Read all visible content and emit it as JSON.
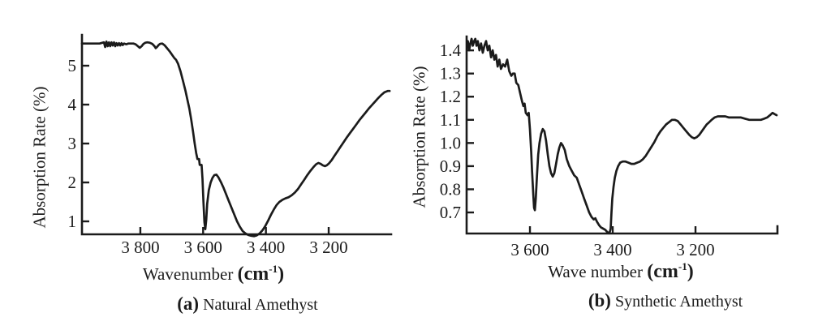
{
  "figure": {
    "background": "#ffffff",
    "ink": "#1b1b1b"
  },
  "chart_data": [
    {
      "id": "a",
      "type": "line",
      "caption_prefix": "(a)",
      "caption_text": "Natural Amethyst",
      "ylabel": "Absorption Rate (%)",
      "xlabel": "Wavenumber",
      "unit_pre": "(cm",
      "unit_exp": "-1",
      "unit_post": ")",
      "x_axis_reversed": true,
      "grid": false,
      "legend": "none",
      "x_ticks": [
        {
          "value": 3800,
          "label": "3 800"
        },
        {
          "value": 3600,
          "label": "3 600"
        },
        {
          "value": 3400,
          "label": "3 400"
        },
        {
          "value": 3200,
          "label": "3 200"
        }
      ],
      "y_ticks": [
        {
          "value": 1,
          "label": "1"
        },
        {
          "value": 2,
          "label": "2"
        },
        {
          "value": 3,
          "label": "3"
        },
        {
          "value": 4,
          "label": "4"
        },
        {
          "value": 5,
          "label": "5"
        }
      ],
      "x_range": [
        3986,
        3001
      ],
      "y_range": [
        0.667,
        5.792
      ],
      "series": [
        [
          3986,
          5.57
        ],
        [
          3970,
          5.57
        ],
        [
          3950,
          5.57
        ],
        [
          3930,
          5.57
        ],
        [
          3916,
          5.6
        ],
        [
          3912,
          5.48
        ],
        [
          3908,
          5.62
        ],
        [
          3904,
          5.5
        ],
        [
          3900,
          5.6
        ],
        [
          3896,
          5.5
        ],
        [
          3892,
          5.6
        ],
        [
          3888,
          5.52
        ],
        [
          3884,
          5.6
        ],
        [
          3880,
          5.5
        ],
        [
          3876,
          5.58
        ],
        [
          3872,
          5.52
        ],
        [
          3868,
          5.58
        ],
        [
          3864,
          5.52
        ],
        [
          3860,
          5.58
        ],
        [
          3856,
          5.53
        ],
        [
          3852,
          5.57
        ],
        [
          3845,
          5.55
        ],
        [
          3838,
          5.57
        ],
        [
          3830,
          5.57
        ],
        [
          3822,
          5.57
        ],
        [
          3815,
          5.55
        ],
        [
          3808,
          5.5
        ],
        [
          3802,
          5.46
        ],
        [
          3796,
          5.5
        ],
        [
          3790,
          5.56
        ],
        [
          3784,
          5.59
        ],
        [
          3778,
          5.6
        ],
        [
          3770,
          5.59
        ],
        [
          3762,
          5.56
        ],
        [
          3755,
          5.5
        ],
        [
          3751,
          5.45
        ],
        [
          3747,
          5.48
        ],
        [
          3742,
          5.53
        ],
        [
          3737,
          5.56
        ],
        [
          3730,
          5.57
        ],
        [
          3722,
          5.52
        ],
        [
          3714,
          5.44
        ],
        [
          3706,
          5.36
        ],
        [
          3698,
          5.27
        ],
        [
          3692,
          5.2
        ],
        [
          3686,
          5.15
        ],
        [
          3680,
          5.05
        ],
        [
          3672,
          4.85
        ],
        [
          3664,
          4.6
        ],
        [
          3656,
          4.35
        ],
        [
          3650,
          4.12
        ],
        [
          3644,
          3.9
        ],
        [
          3638,
          3.62
        ],
        [
          3632,
          3.3
        ],
        [
          3627,
          3.0
        ],
        [
          3622,
          2.75
        ],
        [
          3618,
          2.6
        ],
        [
          3613,
          2.6
        ],
        [
          3611,
          2.45
        ],
        [
          3605,
          2.45
        ],
        [
          3602,
          2.1
        ],
        [
          3599,
          1.5
        ],
        [
          3596,
          0.98
        ],
        [
          3593,
          0.8
        ],
        [
          3590,
          1.05
        ],
        [
          3587,
          1.45
        ],
        [
          3582,
          1.8
        ],
        [
          3576,
          2.0
        ],
        [
          3570,
          2.12
        ],
        [
          3564,
          2.19
        ],
        [
          3558,
          2.2
        ],
        [
          3552,
          2.14
        ],
        [
          3544,
          2.02
        ],
        [
          3536,
          1.88
        ],
        [
          3528,
          1.72
        ],
        [
          3519,
          1.54
        ],
        [
          3510,
          1.36
        ],
        [
          3501,
          1.18
        ],
        [
          3492,
          1.0
        ],
        [
          3483,
          0.86
        ],
        [
          3474,
          0.75
        ],
        [
          3465,
          0.69
        ],
        [
          3456,
          0.65
        ],
        [
          3447,
          0.63
        ],
        [
          3438,
          0.62
        ],
        [
          3429,
          0.64
        ],
        [
          3420,
          0.69
        ],
        [
          3411,
          0.77
        ],
        [
          3402,
          0.88
        ],
        [
          3393,
          1.02
        ],
        [
          3384,
          1.17
        ],
        [
          3375,
          1.3
        ],
        [
          3366,
          1.42
        ],
        [
          3357,
          1.5
        ],
        [
          3348,
          1.55
        ],
        [
          3338,
          1.59
        ],
        [
          3328,
          1.62
        ],
        [
          3318,
          1.67
        ],
        [
          3308,
          1.74
        ],
        [
          3298,
          1.83
        ],
        [
          3288,
          1.95
        ],
        [
          3278,
          2.07
        ],
        [
          3268,
          2.19
        ],
        [
          3258,
          2.3
        ],
        [
          3248,
          2.4
        ],
        [
          3240,
          2.47
        ],
        [
          3233,
          2.5
        ],
        [
          3226,
          2.48
        ],
        [
          3219,
          2.44
        ],
        [
          3212,
          2.42
        ],
        [
          3206,
          2.44
        ],
        [
          3199,
          2.49
        ],
        [
          3191,
          2.57
        ],
        [
          3182,
          2.68
        ],
        [
          3172,
          2.8
        ],
        [
          3162,
          2.92
        ],
        [
          3152,
          3.04
        ],
        [
          3142,
          3.16
        ],
        [
          3132,
          3.27
        ],
        [
          3122,
          3.38
        ],
        [
          3112,
          3.49
        ],
        [
          3102,
          3.6
        ],
        [
          3092,
          3.7
        ],
        [
          3082,
          3.8
        ],
        [
          3072,
          3.9
        ],
        [
          3062,
          3.99
        ],
        [
          3052,
          4.08
        ],
        [
          3042,
          4.17
        ],
        [
          3032,
          4.25
        ],
        [
          3022,
          4.32
        ],
        [
          3012,
          4.35
        ],
        [
          3006,
          4.35
        ]
      ]
    },
    {
      "id": "b",
      "type": "line",
      "caption_prefix": "(b)",
      "caption_text": "Synthetic Amethyst",
      "ylabel": "Absorption Rate (%)",
      "xlabel": "Wave number",
      "unit_pre": "(cm",
      "unit_exp": "-1",
      "unit_post": ")",
      "x_axis_reversed": true,
      "grid": false,
      "legend": "none",
      "x_ticks": [
        {
          "value": 3600,
          "label": "3 600"
        },
        {
          "value": 3400,
          "label": "3 400"
        },
        {
          "value": 3200,
          "label": "3 200"
        }
      ],
      "y_ticks": [
        {
          "value": 0.7,
          "label": "0.7"
        },
        {
          "value": 0.8,
          "label": "0.8"
        },
        {
          "value": 0.9,
          "label": "0.9"
        },
        {
          "value": 1.0,
          "label": "1.0"
        },
        {
          "value": 1.1,
          "label": "1.1"
        },
        {
          "value": 1.2,
          "label": "1.2"
        },
        {
          "value": 1.3,
          "label": "1.3"
        },
        {
          "value": 1.4,
          "label": "1.4"
        }
      ],
      "x_range": [
        3753,
        3002
      ],
      "y_range": [
        0.609,
        1.46
      ],
      "series": [
        [
          3752,
          1.41
        ],
        [
          3750,
          1.44
        ],
        [
          3747,
          1.4
        ],
        [
          3744,
          1.43
        ],
        [
          3741,
          1.45
        ],
        [
          3738,
          1.42
        ],
        [
          3735,
          1.44
        ],
        [
          3732,
          1.45
        ],
        [
          3729,
          1.42
        ],
        [
          3726,
          1.44
        ],
        [
          3722,
          1.4
        ],
        [
          3718,
          1.43
        ],
        [
          3714,
          1.39
        ],
        [
          3710,
          1.42
        ],
        [
          3706,
          1.44
        ],
        [
          3702,
          1.4
        ],
        [
          3698,
          1.42
        ],
        [
          3694,
          1.37
        ],
        [
          3690,
          1.4
        ],
        [
          3686,
          1.36
        ],
        [
          3682,
          1.38
        ],
        [
          3678,
          1.33
        ],
        [
          3674,
          1.36
        ],
        [
          3670,
          1.32
        ],
        [
          3665,
          1.34
        ],
        [
          3660,
          1.33
        ],
        [
          3655,
          1.36
        ],
        [
          3650,
          1.31
        ],
        [
          3645,
          1.29
        ],
        [
          3641,
          1.3
        ],
        [
          3637,
          1.3
        ],
        [
          3633,
          1.26
        ],
        [
          3628,
          1.25
        ],
        [
          3623,
          1.21
        ],
        [
          3619,
          1.18
        ],
        [
          3616,
          1.16
        ],
        [
          3613,
          1.17
        ],
        [
          3610,
          1.13
        ],
        [
          3606,
          1.12
        ],
        [
          3603,
          1.13
        ],
        [
          3600,
          1.06
        ],
        [
          3597,
          0.96
        ],
        [
          3595,
          0.88
        ],
        [
          3592,
          0.78
        ],
        [
          3590,
          0.72
        ],
        [
          3588,
          0.71
        ],
        [
          3586,
          0.76
        ],
        [
          3583,
          0.86
        ],
        [
          3580,
          0.95
        ],
        [
          3577,
          1.0
        ],
        [
          3573,
          1.04
        ],
        [
          3569,
          1.06
        ],
        [
          3565,
          1.05
        ],
        [
          3561,
          1.01
        ],
        [
          3557,
          0.95
        ],
        [
          3553,
          0.9
        ],
        [
          3549,
          0.87
        ],
        [
          3545,
          0.855
        ],
        [
          3541,
          0.87
        ],
        [
          3537,
          0.91
        ],
        [
          3533,
          0.95
        ],
        [
          3529,
          0.98
        ],
        [
          3525,
          1.0
        ],
        [
          3521,
          0.99
        ],
        [
          3516,
          0.97
        ],
        [
          3511,
          0.93
        ],
        [
          3505,
          0.9
        ],
        [
          3499,
          0.88
        ],
        [
          3493,
          0.86
        ],
        [
          3487,
          0.85
        ],
        [
          3481,
          0.82
        ],
        [
          3475,
          0.79
        ],
        [
          3469,
          0.76
        ],
        [
          3463,
          0.73
        ],
        [
          3457,
          0.7
        ],
        [
          3451,
          0.68
        ],
        [
          3446,
          0.67
        ],
        [
          3442,
          0.675
        ],
        [
          3438,
          0.66
        ],
        [
          3433,
          0.645
        ],
        [
          3428,
          0.635
        ],
        [
          3423,
          0.63
        ],
        [
          3418,
          0.625
        ],
        [
          3413,
          0.615
        ],
        [
          3408,
          0.61
        ],
        [
          3405,
          0.63
        ],
        [
          3403,
          0.7
        ],
        [
          3401,
          0.76
        ],
        [
          3398,
          0.81
        ],
        [
          3395,
          0.85
        ],
        [
          3391,
          0.88
        ],
        [
          3387,
          0.9
        ],
        [
          3382,
          0.915
        ],
        [
          3376,
          0.92
        ],
        [
          3369,
          0.92
        ],
        [
          3362,
          0.915
        ],
        [
          3355,
          0.91
        ],
        [
          3348,
          0.91
        ],
        [
          3341,
          0.915
        ],
        [
          3334,
          0.92
        ],
        [
          3327,
          0.93
        ],
        [
          3320,
          0.945
        ],
        [
          3313,
          0.965
        ],
        [
          3306,
          0.985
        ],
        [
          3299,
          1.005
        ],
        [
          3292,
          1.03
        ],
        [
          3285,
          1.05
        ],
        [
          3278,
          1.065
        ],
        [
          3271,
          1.08
        ],
        [
          3264,
          1.09
        ],
        [
          3257,
          1.1
        ],
        [
          3250,
          1.1
        ],
        [
          3243,
          1.095
        ],
        [
          3236,
          1.08
        ],
        [
          3229,
          1.065
        ],
        [
          3222,
          1.05
        ],
        [
          3215,
          1.035
        ],
        [
          3209,
          1.025
        ],
        [
          3203,
          1.02
        ],
        [
          3197,
          1.025
        ],
        [
          3191,
          1.035
        ],
        [
          3185,
          1.05
        ],
        [
          3179,
          1.065
        ],
        [
          3173,
          1.08
        ],
        [
          3167,
          1.09
        ],
        [
          3161,
          1.1
        ],
        [
          3154,
          1.11
        ],
        [
          3146,
          1.115
        ],
        [
          3137,
          1.115
        ],
        [
          3128,
          1.115
        ],
        [
          3119,
          1.11
        ],
        [
          3110,
          1.11
        ],
        [
          3100,
          1.11
        ],
        [
          3090,
          1.11
        ],
        [
          3080,
          1.105
        ],
        [
          3070,
          1.1
        ],
        [
          3060,
          1.1
        ],
        [
          3050,
          1.1
        ],
        [
          3042,
          1.1
        ],
        [
          3034,
          1.105
        ],
        [
          3027,
          1.11
        ],
        [
          3020,
          1.12
        ],
        [
          3014,
          1.13
        ],
        [
          3009,
          1.125
        ],
        [
          3004,
          1.12
        ]
      ]
    }
  ]
}
